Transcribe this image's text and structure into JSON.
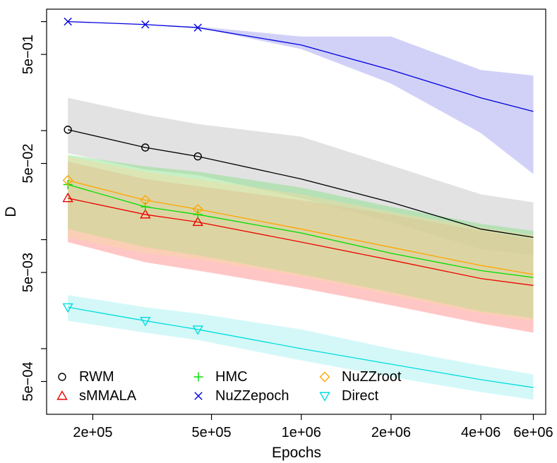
{
  "chart_data": {
    "type": "line",
    "title": "",
    "xlabel": "Epochs",
    "ylabel": "D",
    "x_scale": "log",
    "y_scale": "log",
    "xlim": [
      140000,
      6600000
    ],
    "ylim": [
      0.00025,
      1.3
    ],
    "grid": false,
    "legend_position": "bottom-left",
    "x_ticks": [
      {
        "value": 200000,
        "label": "2e+05"
      },
      {
        "value": 500000,
        "label": "5e+05"
      },
      {
        "value": 1000000,
        "label": "1e+06"
      },
      {
        "value": 2000000,
        "label": "2e+06"
      },
      {
        "value": 4000000,
        "label": "4e+06"
      },
      {
        "value": 6000000,
        "label": "6e+06"
      }
    ],
    "y_ticks": [
      {
        "value": 1.0,
        "label": ""
      },
      {
        "value": 0.5,
        "label": "5e−01"
      },
      {
        "value": 0.1,
        "label": ""
      },
      {
        "value": 0.05,
        "label": "5e−02"
      },
      {
        "value": 0.01,
        "label": ""
      },
      {
        "value": 0.005,
        "label": "5e−03"
      },
      {
        "value": 0.001,
        "label": ""
      },
      {
        "value": 0.0005,
        "label": "5e−04"
      }
    ],
    "x": [
      165000,
      300000,
      450000,
      1000000,
      2000000,
      4000000,
      6000000
    ],
    "series": [
      {
        "name": "RWM",
        "color": "#000000",
        "band_color": "#bebebe",
        "marker": "circle",
        "values": [
          0.102,
          0.07,
          0.058,
          0.036,
          0.022,
          0.0125,
          0.0105
        ],
        "lower": [
          0.062,
          0.044,
          0.039,
          0.024,
          0.0145,
          0.0082,
          0.0072
        ],
        "upper": [
          0.2,
          0.14,
          0.115,
          0.088,
          0.048,
          0.026,
          0.022
        ],
        "marker_x": [
          165000,
          300000,
          450000
        ]
      },
      {
        "name": "sMMALA",
        "color": "#ee0000",
        "band_color": "#ff8080",
        "marker": "triangle-up",
        "values": [
          0.024,
          0.017,
          0.0145,
          0.0095,
          0.0065,
          0.0044,
          0.0038
        ],
        "lower": [
          0.0095,
          0.0062,
          0.0052,
          0.0036,
          0.0025,
          0.0017,
          0.0014
        ],
        "upper": [
          0.052,
          0.036,
          0.031,
          0.023,
          0.017,
          0.012,
          0.01
        ],
        "marker_x": [
          165000,
          300000,
          450000
        ]
      },
      {
        "name": "HMC",
        "color": "#00dd00",
        "band_color": "#80e080",
        "marker": "plus",
        "values": [
          0.032,
          0.02,
          0.017,
          0.0115,
          0.0075,
          0.0052,
          0.0045
        ],
        "lower": [
          0.0125,
          0.0085,
          0.0072,
          0.0048,
          0.0033,
          0.0022,
          0.0019
        ],
        "upper": [
          0.06,
          0.047,
          0.042,
          0.03,
          0.02,
          0.014,
          0.012
        ],
        "marker_x": [
          165000,
          300000,
          450000
        ]
      },
      {
        "name": "NuZZepoch",
        "color": "#0000dd",
        "band_color": "#9a9af0",
        "marker": "x",
        "values": [
          1.0,
          0.94,
          0.88,
          0.61,
          0.36,
          0.2,
          0.15
        ],
        "lower": [
          1.0,
          0.94,
          0.88,
          0.56,
          0.27,
          0.095,
          0.04
        ],
        "upper": [
          1.0,
          0.94,
          0.9,
          0.73,
          0.73,
          0.36,
          0.32
        ],
        "marker_x": [
          165000,
          300000,
          450000
        ]
      },
      {
        "name": "NuZZroot",
        "color": "#ffa500",
        "band_color": "#f7d9a0",
        "marker": "diamond",
        "values": [
          0.035,
          0.023,
          0.019,
          0.0125,
          0.0085,
          0.0058,
          0.0048
        ],
        "lower": [
          0.0105,
          0.0075,
          0.0066,
          0.0046,
          0.0031,
          0.0021,
          0.0018
        ],
        "upper": [
          0.058,
          0.042,
          0.036,
          0.026,
          0.018,
          0.013,
          0.011
        ],
        "marker_x": [
          165000,
          300000,
          450000
        ]
      },
      {
        "name": "Direct",
        "color": "#00dddd",
        "band_color": "#a0f0f0",
        "marker": "triangle-down",
        "values": [
          0.0024,
          0.0018,
          0.0015,
          0.001,
          0.00072,
          0.00052,
          0.00044
        ],
        "lower": [
          0.0018,
          0.0014,
          0.0012,
          0.00078,
          0.00055,
          0.0004,
          0.00034
        ],
        "upper": [
          0.0031,
          0.0024,
          0.0021,
          0.0015,
          0.001,
          0.0007,
          0.00058
        ],
        "marker_x": [
          165000,
          300000,
          450000
        ]
      }
    ],
    "legend_columns": [
      [
        "RWM",
        "sMMALA"
      ],
      [
        "HMC",
        "NuZZepoch"
      ],
      [
        "NuZZroot",
        "Direct"
      ]
    ]
  }
}
